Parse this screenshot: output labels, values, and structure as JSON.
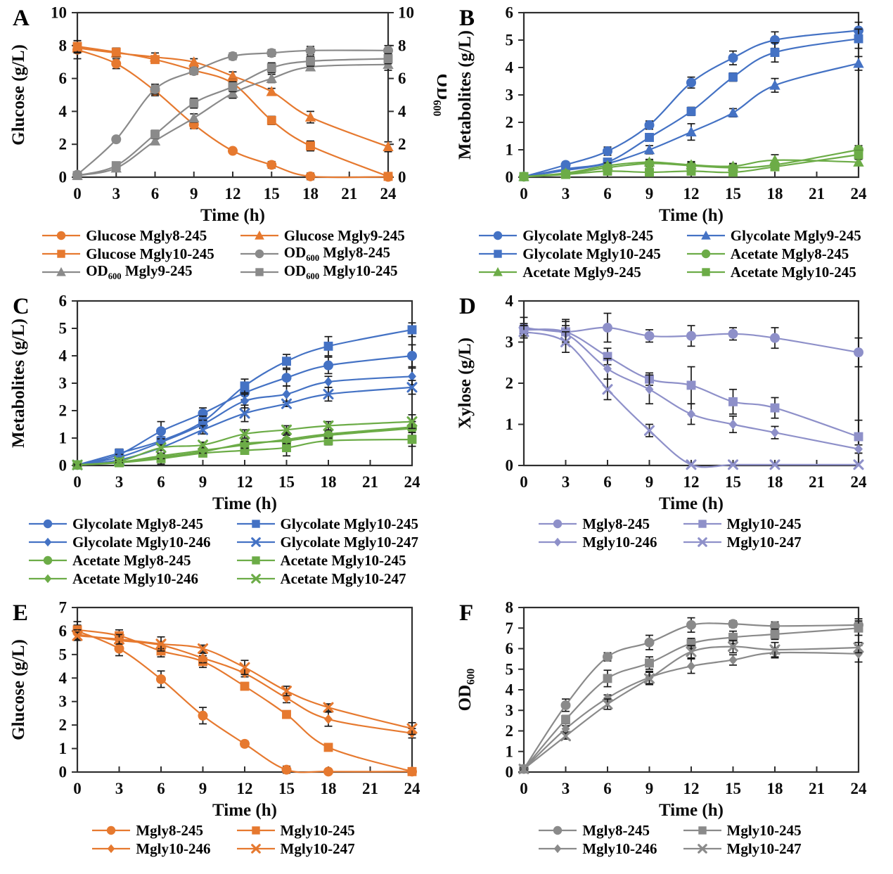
{
  "palette": {
    "orange": "#E6792F",
    "gray": "#8A8A8A",
    "blue": "#4472C4",
    "green": "#6CAC47",
    "periwinkle": "#8E90C9",
    "error_bar": "#1a1a1a",
    "axis": "#2f2f2f"
  },
  "chart_data": [
    {
      "panel_label": "A",
      "type": "line",
      "xlabel": "Time (h)",
      "ylabel": "Glucose (g/L)",
      "ylabel_right": "OD600",
      "xlim": [
        0,
        24
      ],
      "x_ticks": [
        0,
        3,
        6,
        9,
        12,
        15,
        18,
        21,
        24
      ],
      "ylim": [
        0,
        10
      ],
      "y_ticks": [
        0,
        2,
        4,
        6,
        8,
        10
      ],
      "ylim_right": [
        0,
        10
      ],
      "y_ticks_right": [
        0,
        2,
        4,
        6,
        8,
        10
      ],
      "x": [
        0,
        3,
        6,
        9,
        12,
        15,
        18,
        24
      ],
      "series": [
        {
          "name": "Glucose Mgly8-245",
          "color": "orange",
          "marker": "circle",
          "axis": "left",
          "values": [
            7.75,
            6.9,
            5.25,
            3.2,
            1.6,
            0.75,
            0.05,
            0.02
          ],
          "err": [
            0.55,
            0.3,
            0.3,
            0.25,
            0.15,
            0.2,
            0.2,
            0.15
          ]
        },
        {
          "name": "Glucose Mgly9-245",
          "color": "orange",
          "marker": "triangle",
          "axis": "left",
          "values": [
            7.85,
            7.55,
            7.3,
            7.0,
            6.15,
            5.2,
            3.65,
            1.85
          ],
          "err": [
            0.3,
            0.25,
            0.25,
            0.2,
            0.25,
            0.2,
            0.35,
            0.3
          ]
        },
        {
          "name": "Glucose Mgly10-245",
          "color": "orange",
          "marker": "square",
          "axis": "left",
          "values": [
            7.95,
            7.6,
            7.15,
            6.5,
            5.7,
            3.45,
            1.9,
            0.05
          ],
          "err": [
            0.35,
            0.25,
            0.2,
            0.2,
            0.25,
            0.25,
            0.3,
            0.1
          ]
        },
        {
          "name": "OD600 Mgly8-245",
          "color": "gray",
          "marker": "circle",
          "axis": "right",
          "values": [
            0.15,
            2.3,
            5.35,
            6.45,
            7.35,
            7.55,
            7.7,
            7.7
          ],
          "err": [
            0.1,
            0.15,
            0.3,
            0.2,
            0.2,
            0.2,
            0.25,
            0.3
          ]
        },
        {
          "name": "OD600 Mgly9-245",
          "color": "gray",
          "marker": "triangle",
          "axis": "right",
          "values": [
            0.1,
            0.55,
            2.2,
            3.6,
            5.1,
            6.0,
            6.7,
            6.85
          ],
          "err": [
            0.1,
            0.1,
            0.2,
            0.25,
            0.3,
            0.25,
            0.2,
            0.35
          ]
        },
        {
          "name": "OD600 Mgly10-245",
          "color": "gray",
          "marker": "square",
          "axis": "right",
          "values": [
            0.1,
            0.7,
            2.6,
            4.5,
            5.5,
            6.65,
            7.05,
            7.2
          ],
          "err": [
            0.1,
            0.1,
            0.25,
            0.3,
            0.3,
            0.3,
            0.3,
            0.3
          ]
        }
      ]
    },
    {
      "panel_label": "B",
      "type": "line",
      "xlabel": "Time (h)",
      "ylabel": "Metabolites (g/L)",
      "xlim": [
        0,
        24
      ],
      "x_ticks": [
        0,
        3,
        6,
        9,
        12,
        15,
        18,
        21,
        24
      ],
      "ylim": [
        0,
        6
      ],
      "y_ticks": [
        0,
        1,
        2,
        3,
        4,
        5,
        6
      ],
      "x": [
        0,
        3,
        6,
        9,
        12,
        15,
        18,
        24
      ],
      "series": [
        {
          "name": "Glycolate Mgly8-245",
          "color": "blue",
          "marker": "circle",
          "axis": "left",
          "values": [
            0.02,
            0.45,
            0.95,
            1.9,
            3.45,
            4.35,
            5.0,
            5.35
          ],
          "err": [
            0.05,
            0.1,
            0.15,
            0.15,
            0.2,
            0.25,
            0.3,
            0.3
          ]
        },
        {
          "name": "Glycolate Mgly9-245",
          "color": "blue",
          "marker": "triangle",
          "axis": "left",
          "values": [
            0.02,
            0.25,
            0.5,
            1.0,
            1.65,
            2.35,
            3.35,
            4.15
          ],
          "err": [
            0.05,
            0.08,
            0.1,
            0.15,
            0.3,
            0.15,
            0.25,
            0.25
          ]
        },
        {
          "name": "Glycolate Mgly10-245",
          "color": "blue",
          "marker": "square",
          "axis": "left",
          "values": [
            0.02,
            0.3,
            0.55,
            1.45,
            2.4,
            3.65,
            4.55,
            5.05
          ],
          "err": [
            0.05,
            0.08,
            0.1,
            0.12,
            0.15,
            0.15,
            0.35,
            0.35
          ]
        },
        {
          "name": "Acetate Mgly8-245",
          "color": "green",
          "marker": "circle",
          "axis": "left",
          "values": [
            0.02,
            0.12,
            0.35,
            0.5,
            0.42,
            0.35,
            0.45,
            1.0
          ],
          "err": [
            0.03,
            0.05,
            0.1,
            0.12,
            0.15,
            0.12,
            0.1,
            0.15
          ]
        },
        {
          "name": "Acetate Mgly9-245",
          "color": "green",
          "marker": "triangle",
          "axis": "left",
          "values": [
            0.02,
            0.15,
            0.42,
            0.55,
            0.45,
            0.4,
            0.62,
            0.55
          ],
          "err": [
            0.03,
            0.05,
            0.1,
            0.1,
            0.1,
            0.1,
            0.2,
            0.1
          ]
        },
        {
          "name": "Acetate Mgly10-245",
          "color": "green",
          "marker": "square",
          "axis": "left",
          "values": [
            0.02,
            0.1,
            0.22,
            0.18,
            0.22,
            0.18,
            0.38,
            0.82
          ],
          "err": [
            0.03,
            0.05,
            0.08,
            0.08,
            0.08,
            0.08,
            0.1,
            0.15
          ]
        }
      ]
    },
    {
      "panel_label": "C",
      "type": "line",
      "xlabel": "Time (h)",
      "ylabel": "Metabolites (g/L)",
      "xlim": [
        0,
        24
      ],
      "x_ticks": [
        0,
        3,
        6,
        9,
        12,
        15,
        18,
        21,
        24
      ],
      "ylim": [
        0,
        6
      ],
      "y_ticks": [
        0,
        1,
        2,
        3,
        4,
        5,
        6
      ],
      "x": [
        0,
        3,
        6,
        9,
        12,
        15,
        18,
        24
      ],
      "series": [
        {
          "name": "Glycolate Mgly8-245",
          "color": "blue",
          "marker": "circle",
          "axis": "left",
          "values": [
            0.02,
            0.4,
            1.25,
            1.9,
            2.65,
            3.2,
            3.65,
            4.0
          ],
          "err": [
            0.05,
            0.1,
            0.35,
            0.2,
            0.25,
            0.3,
            0.3,
            0.4
          ]
        },
        {
          "name": "Glycolate Mgly10-245",
          "color": "blue",
          "marker": "square",
          "axis": "left",
          "values": [
            0.02,
            0.45,
            0.9,
            1.6,
            2.9,
            3.8,
            4.35,
            4.95
          ],
          "err": [
            0.05,
            0.15,
            0.15,
            0.2,
            0.25,
            0.25,
            0.35,
            0.25
          ]
        },
        {
          "name": "Glycolate Mgly10-246",
          "color": "blue",
          "marker": "diamond",
          "axis": "left",
          "values": [
            0.02,
            0.3,
            0.85,
            1.5,
            2.35,
            2.6,
            3.05,
            3.25
          ],
          "err": [
            0.05,
            0.1,
            0.12,
            0.15,
            0.25,
            0.3,
            0.2,
            0.3
          ]
        },
        {
          "name": "Glycolate Mgly10-247",
          "color": "blue",
          "marker": "x",
          "axis": "left",
          "values": [
            0.02,
            0.2,
            0.65,
            1.3,
            1.9,
            2.25,
            2.6,
            2.85
          ],
          "err": [
            0.05,
            0.08,
            0.1,
            0.15,
            0.3,
            0.1,
            0.25,
            0.25
          ]
        },
        {
          "name": "Acetate Mgly8-245",
          "color": "green",
          "marker": "circle",
          "axis": "left",
          "values": [
            0.02,
            0.12,
            0.3,
            0.5,
            0.8,
            0.9,
            1.1,
            1.35
          ],
          "err": [
            0.03,
            0.05,
            0.1,
            0.12,
            0.15,
            0.3,
            0.15,
            0.25
          ]
        },
        {
          "name": "Acetate Mgly10-245",
          "color": "green",
          "marker": "square",
          "axis": "left",
          "values": [
            0.02,
            0.1,
            0.25,
            0.45,
            0.55,
            0.65,
            0.9,
            0.95
          ],
          "err": [
            0.03,
            0.05,
            0.2,
            0.1,
            0.12,
            0.3,
            0.15,
            0.25
          ]
        },
        {
          "name": "Acetate Mgly10-246",
          "color": "green",
          "marker": "diamond",
          "axis": "left",
          "values": [
            0.02,
            0.12,
            0.35,
            0.55,
            0.75,
            0.95,
            1.15,
            1.4
          ],
          "err": [
            0.03,
            0.05,
            0.1,
            0.1,
            0.12,
            0.15,
            0.15,
            0.2
          ]
        },
        {
          "name": "Acetate Mgly10-247",
          "color": "green",
          "marker": "x",
          "axis": "left",
          "values": [
            0.02,
            0.15,
            0.65,
            0.75,
            1.15,
            1.3,
            1.45,
            1.6
          ],
          "err": [
            0.03,
            0.05,
            0.1,
            0.1,
            0.15,
            0.15,
            0.15,
            0.25
          ]
        }
      ]
    },
    {
      "panel_label": "D",
      "type": "line",
      "xlabel": "Time (h)",
      "ylabel": "Xylose (g/L)",
      "xlim": [
        0,
        24
      ],
      "x_ticks": [
        0,
        3,
        6,
        9,
        12,
        15,
        18,
        21,
        24
      ],
      "ylim": [
        0,
        4
      ],
      "y_ticks": [
        0,
        1,
        2,
        3,
        4
      ],
      "x": [
        0,
        3,
        6,
        9,
        12,
        15,
        18,
        24
      ],
      "series": [
        {
          "name": "Mgly8-245",
          "color": "periwinkle",
          "marker": "circle",
          "axis": "left",
          "values": [
            3.35,
            3.25,
            3.35,
            3.15,
            3.15,
            3.2,
            3.1,
            2.75
          ],
          "err": [
            0.25,
            0.3,
            0.35,
            0.15,
            0.25,
            0.15,
            0.25,
            0.35
          ]
        },
        {
          "name": "Mgly10-245",
          "color": "periwinkle",
          "marker": "square",
          "axis": "left",
          "values": [
            3.3,
            3.25,
            2.65,
            2.1,
            1.95,
            1.55,
            1.4,
            0.7
          ],
          "err": [
            0.15,
            0.25,
            0.2,
            0.15,
            0.45,
            0.3,
            0.25,
            0.4
          ]
        },
        {
          "name": "Mgly10-246",
          "color": "periwinkle",
          "marker": "diamond",
          "axis": "left",
          "values": [
            3.3,
            3.2,
            2.35,
            1.85,
            1.25,
            1.0,
            0.8,
            0.4
          ],
          "err": [
            0.1,
            0.2,
            0.25,
            0.35,
            0.25,
            0.2,
            0.15,
            0.1
          ]
        },
        {
          "name": "Mgly10-247",
          "color": "periwinkle",
          "marker": "x",
          "axis": "left",
          "values": [
            3.25,
            3.0,
            1.85,
            0.85,
            0.02,
            0.02,
            0.02,
            0.02
          ],
          "err": [
            0.15,
            0.25,
            0.25,
            0.15,
            0,
            0,
            0,
            0
          ]
        }
      ]
    },
    {
      "panel_label": "E",
      "type": "line",
      "xlabel": "Time (h)",
      "ylabel": "Glucose (g/L)",
      "xlim": [
        0,
        24
      ],
      "x_ticks": [
        0,
        3,
        6,
        9,
        12,
        15,
        18,
        21,
        24
      ],
      "ylim": [
        0,
        7
      ],
      "y_ticks": [
        0,
        1,
        2,
        3,
        4,
        5,
        6,
        7
      ],
      "x": [
        0,
        3,
        6,
        9,
        12,
        15,
        18,
        24
      ],
      "series": [
        {
          "name": "Mgly8-245",
          "color": "orange",
          "marker": "circle",
          "axis": "left",
          "values": [
            6.0,
            5.25,
            3.95,
            2.4,
            1.2,
            0.1,
            0.02,
            0.02
          ],
          "err": [
            0.4,
            0.3,
            0.35,
            0.35,
            0.12,
            0.15,
            0,
            0
          ]
        },
        {
          "name": "Mgly10-245",
          "color": "orange",
          "marker": "square",
          "axis": "left",
          "values": [
            6.05,
            5.8,
            5.15,
            4.7,
            3.65,
            2.45,
            1.05,
            0.02
          ],
          "err": [
            0.2,
            0.25,
            0.25,
            0.25,
            0.15,
            0.15,
            0.12,
            0
          ]
        },
        {
          "name": "Mgly10-246",
          "color": "orange",
          "marker": "diamond",
          "axis": "left",
          "values": [
            5.85,
            5.6,
            5.4,
            4.85,
            4.2,
            3.15,
            2.25,
            1.65
          ],
          "err": [
            0.2,
            0.15,
            0.15,
            0.2,
            0.15,
            0.2,
            0.3,
            0.2
          ]
        },
        {
          "name": "Mgly10-247",
          "color": "orange",
          "marker": "x",
          "axis": "left",
          "values": [
            5.8,
            5.65,
            5.45,
            5.25,
            4.45,
            3.45,
            2.75,
            1.85
          ],
          "err": [
            0.15,
            0.2,
            0.3,
            0.15,
            0.3,
            0.2,
            0.15,
            0.25
          ]
        }
      ]
    },
    {
      "panel_label": "F",
      "type": "line",
      "xlabel": "Time (h)",
      "ylabel": "OD600",
      "xlim": [
        0,
        24
      ],
      "x_ticks": [
        0,
        3,
        6,
        9,
        12,
        15,
        18,
        21,
        24
      ],
      "ylim": [
        0,
        8
      ],
      "y_ticks": [
        0,
        1,
        2,
        3,
        4,
        5,
        6,
        7,
        8
      ],
      "x": [
        0,
        3,
        6,
        9,
        12,
        15,
        18,
        24
      ],
      "series": [
        {
          "name": "Mgly8-245",
          "color": "gray",
          "marker": "circle",
          "axis": "left",
          "values": [
            0.15,
            3.25,
            5.6,
            6.3,
            7.15,
            7.2,
            7.1,
            7.15
          ],
          "err": [
            0.05,
            0.3,
            0.2,
            0.35,
            0.35,
            0.15,
            0.2,
            0.3
          ]
        },
        {
          "name": "Mgly10-245",
          "color": "gray",
          "marker": "square",
          "axis": "left",
          "values": [
            0.15,
            2.55,
            4.55,
            5.3,
            6.25,
            6.55,
            6.7,
            7.0
          ],
          "err": [
            0.05,
            0.2,
            0.4,
            0.3,
            0.25,
            0.3,
            0.25,
            0.35
          ]
        },
        {
          "name": "Mgly10-246",
          "color": "gray",
          "marker": "diamond",
          "axis": "left",
          "values": [
            0.15,
            2.1,
            3.6,
            4.6,
            5.15,
            5.45,
            5.8,
            5.75
          ],
          "err": [
            0.05,
            0.15,
            0.15,
            0.3,
            0.35,
            0.25,
            0.25,
            0.4
          ]
        },
        {
          "name": "Mgly10-247",
          "color": "gray",
          "marker": "x",
          "axis": "left",
          "values": [
            0.15,
            1.75,
            3.3,
            4.55,
            5.85,
            6.1,
            5.95,
            6.05
          ],
          "err": [
            0.05,
            0.15,
            0.25,
            0.3,
            0.3,
            0.3,
            0.35,
            0.25
          ]
        }
      ]
    }
  ]
}
